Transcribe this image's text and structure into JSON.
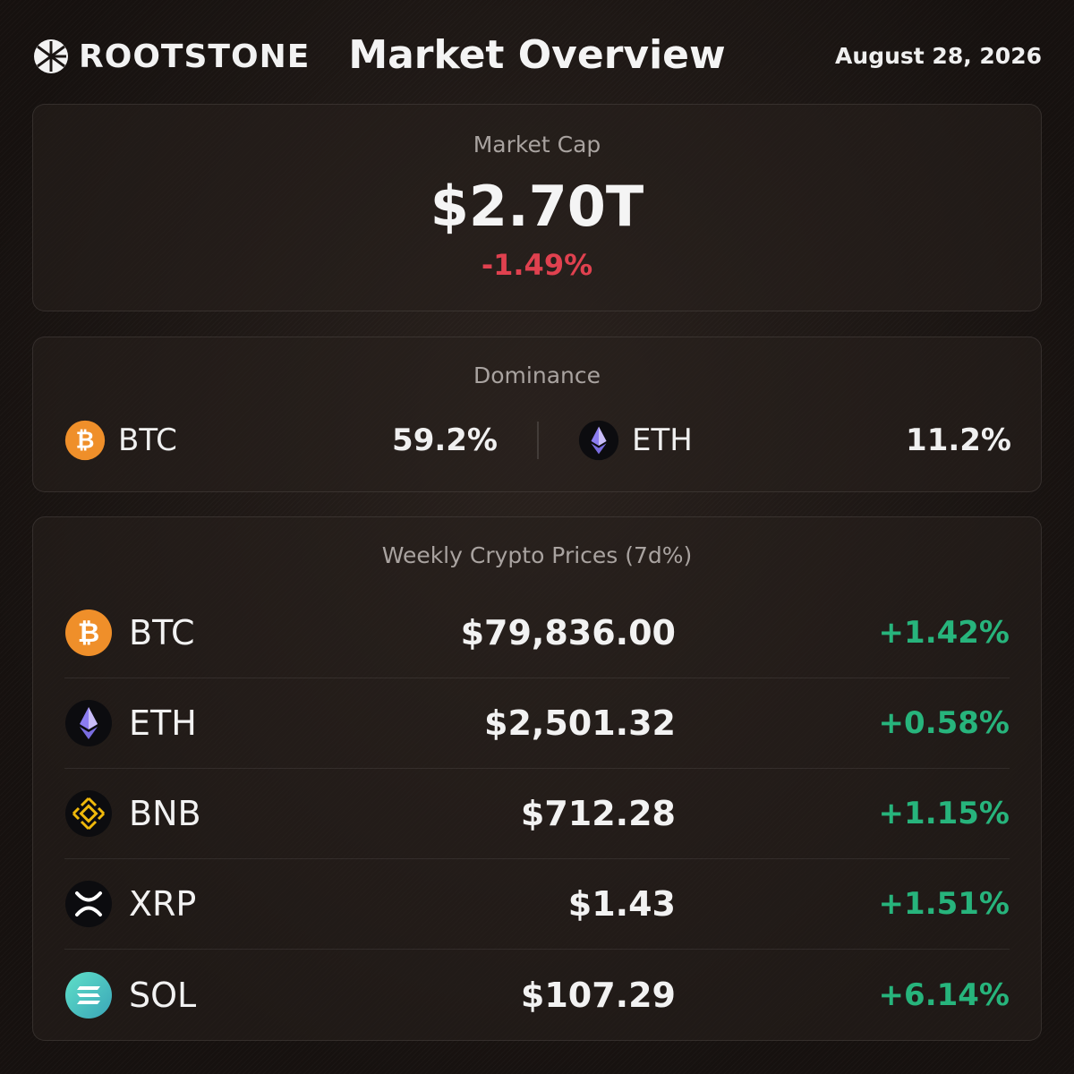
{
  "header": {
    "brand": "ROOTSTONE",
    "title": "Market Overview",
    "date": "August 28, 2026"
  },
  "market_cap": {
    "label": "Market Cap",
    "value": "$2.70T",
    "change": "-1.49%",
    "change_color": "#e0414f"
  },
  "dominance": {
    "label": "Dominance",
    "items": [
      {
        "symbol": "BTC",
        "value": "59.2%",
        "icon": "bitcoin-icon"
      },
      {
        "symbol": "ETH",
        "value": "11.2%",
        "icon": "ethereum-icon"
      }
    ]
  },
  "weekly_prices": {
    "label": "Weekly Crypto Prices (7d%)",
    "positive_color": "#27b47c",
    "rows": [
      {
        "symbol": "BTC",
        "price": "$79,836.00",
        "change": "+1.42%",
        "icon": "bitcoin-icon"
      },
      {
        "symbol": "ETH",
        "price": "$2,501.32",
        "change": "+0.58%",
        "icon": "ethereum-icon"
      },
      {
        "symbol": "BNB",
        "price": "$712.28",
        "change": "+1.15%",
        "icon": "bnb-icon"
      },
      {
        "symbol": "XRP",
        "price": "$1.43",
        "change": "+1.51%",
        "icon": "xrp-icon"
      },
      {
        "symbol": "SOL",
        "price": "$107.29",
        "change": "+6.14%",
        "icon": "solana-icon"
      }
    ]
  }
}
